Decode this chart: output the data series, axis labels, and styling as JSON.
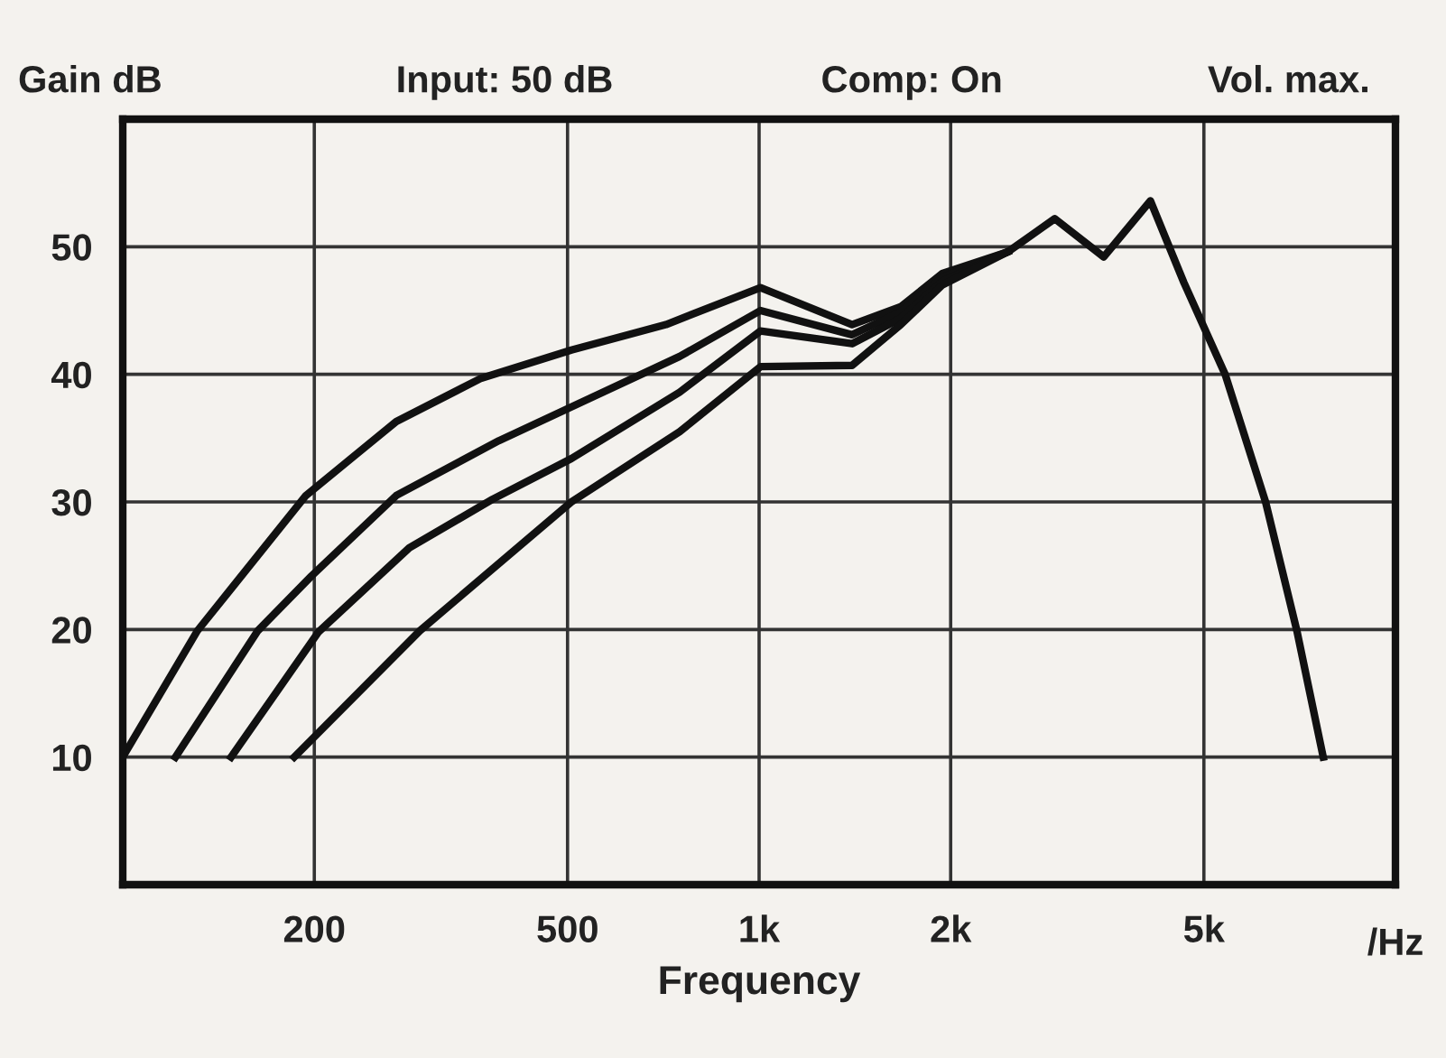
{
  "chart_data": {
    "type": "line",
    "xlabel": "Frequency",
    "ylabel": "Gain dB",
    "annotations": [
      "Input: 50 dB",
      "Comp: On",
      "Vol. max.",
      "/Hz"
    ],
    "log": "x",
    "xlim": [
      100,
      10000
    ],
    "ylim": [
      0,
      60
    ],
    "xticks": [
      200,
      500,
      {
        "value": 1000,
        "label": "1k"
      },
      {
        "value": 2000,
        "label": "2k"
      },
      {
        "value": 5000,
        "label": "5k"
      }
    ],
    "yticks": [
      10,
      20,
      30,
      40,
      50
    ],
    "grid": true,
    "marker": "none",
    "line_style": "solid",
    "series": [
      {
        "color": "#111111",
        "x": [
          100,
          131,
          194,
          269,
          366,
          507,
          714,
          1005,
          1400,
          1670,
          1940,
          2460,
          2915,
          3480,
          4120,
          4650,
          5400,
          6250,
          7000,
          7700
        ],
        "values": [
          10,
          19.9,
          30.5,
          36.3,
          39.7,
          41.9,
          43.9,
          46.8,
          43.9,
          45.3,
          47.9,
          49.6,
          52.2,
          49.2,
          53.6,
          47.2,
          40,
          30,
          19.9,
          10
        ]
      },
      {
        "color": "#111111",
        "x": [
          121,
          163,
          198,
          269,
          390,
          541,
          750,
          1005,
          1400,
          1670,
          1940,
          2460
        ],
        "values": [
          10,
          19.9,
          24.2,
          30.5,
          34.8,
          38.1,
          41.4,
          45,
          43.1,
          44.9,
          47.6,
          49.6
        ]
      },
      {
        "color": "#111111",
        "x": [
          148,
          203,
          282,
          381,
          507,
          750,
          1005,
          1400,
          1670,
          1940,
          2460
        ],
        "values": [
          10,
          19.8,
          26.4,
          30.2,
          33.4,
          38.6,
          43.4,
          42.4,
          44.4,
          47.3,
          49.6
        ]
      },
      {
        "color": "#111111",
        "x": [
          186,
          293,
          507,
          750,
          1005,
          1400,
          1670,
          1940,
          2460
        ],
        "values": [
          10,
          19.9,
          30,
          35.5,
          40.6,
          40.7,
          43.9,
          47,
          49.6
        ]
      }
    ]
  }
}
